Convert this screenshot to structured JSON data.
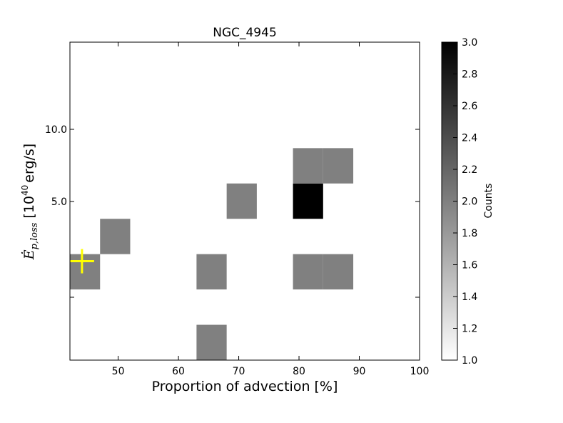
{
  "chart_data": {
    "type": "heatmap",
    "title": "NGC_4945",
    "xlabel": "Proportion of advection [%]",
    "ylabel_math": "Ė",
    "ylabel_sub": "p,loss",
    "ylabel_unit_prefix": "[10",
    "ylabel_unit_exp": "40",
    "ylabel_unit_suffix": "erg/s]",
    "x_ticks": [
      "50",
      "60",
      "70",
      "80",
      "90",
      "100"
    ],
    "y_ticks": [
      "10.0",
      "5.0"
    ],
    "xlim": [
      42,
      100
    ],
    "ylim_bins": [
      0,
      9
    ],
    "x_bin_edges": [
      42,
      47,
      52,
      57,
      63,
      68,
      73,
      79,
      84,
      89,
      94,
      100
    ],
    "cells": [
      {
        "xbin": 0,
        "ybin": 2,
        "count": 2
      },
      {
        "xbin": 1,
        "ybin": 3,
        "count": 2
      },
      {
        "xbin": 4,
        "ybin": 2,
        "count": 2
      },
      {
        "xbin": 4,
        "ybin": 0,
        "count": 2
      },
      {
        "xbin": 5,
        "ybin": 4,
        "count": 2
      },
      {
        "xbin": 7,
        "ybin": 4,
        "count": 3
      },
      {
        "xbin": 7,
        "ybin": 5,
        "count": 2
      },
      {
        "xbin": 8,
        "ybin": 5,
        "count": 2
      },
      {
        "xbin": 7,
        "ybin": 2,
        "count": 2
      },
      {
        "xbin": 8,
        "ybin": 2,
        "count": 2
      }
    ],
    "marker": {
      "x": 44,
      "ybin_center": 2.8,
      "color": "#ffff00",
      "shape": "plus"
    },
    "colorbar": {
      "label": "Counts",
      "min": 1.0,
      "max": 3.0,
      "ticks": [
        "1.0",
        "1.2",
        "1.4",
        "1.6",
        "1.8",
        "2.0",
        "2.2",
        "2.4",
        "2.6",
        "2.8",
        "3.0"
      ],
      "colormap": "gray_r"
    }
  }
}
